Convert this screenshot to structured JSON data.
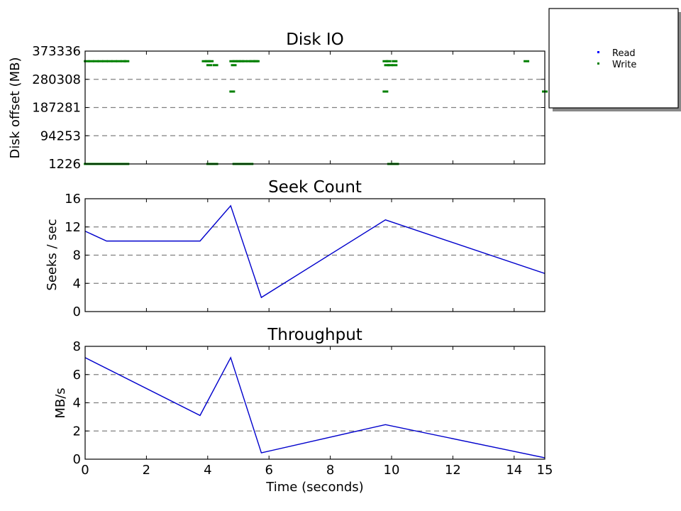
{
  "chart_data": [
    {
      "type": "scatter",
      "title": "Disk IO",
      "xlabel": "",
      "ylabel": "Disk offset (MB)",
      "xlim": [
        0,
        15
      ],
      "ylim": [
        1226,
        373336
      ],
      "yticks": [
        "1226",
        "94253",
        "187281",
        "280308",
        "373336"
      ],
      "grid": "horizontal-dashed",
      "series": [
        {
          "name": "Read",
          "color": "#0000ff",
          "points": []
        },
        {
          "name": "Write",
          "color": "#008000",
          "points": [
            [
              0.05,
              340000
            ],
            [
              0.2,
              340000
            ],
            [
              0.35,
              340000
            ],
            [
              0.5,
              340000
            ],
            [
              0.65,
              340000
            ],
            [
              0.8,
              340000
            ],
            [
              0.95,
              340000
            ],
            [
              1.1,
              340000
            ],
            [
              1.25,
              340000
            ],
            [
              1.35,
              340000
            ],
            [
              0.05,
              1226
            ],
            [
              0.2,
              1226
            ],
            [
              0.35,
              1226
            ],
            [
              0.5,
              1226
            ],
            [
              0.65,
              1226
            ],
            [
              0.8,
              1226
            ],
            [
              0.95,
              1226
            ],
            [
              1.1,
              1226
            ],
            [
              1.25,
              1226
            ],
            [
              1.35,
              1226
            ],
            [
              3.9,
              340000
            ],
            [
              4.0,
              340000
            ],
            [
              4.1,
              340000
            ],
            [
              4.05,
              327000
            ],
            [
              4.25,
              327000
            ],
            [
              4.05,
              1226
            ],
            [
              4.15,
              1226
            ],
            [
              4.25,
              1226
            ],
            [
              4.8,
              340000
            ],
            [
              4.9,
              340000
            ],
            [
              5.0,
              340000
            ],
            [
              5.1,
              340000
            ],
            [
              5.2,
              340000
            ],
            [
              5.35,
              340000
            ],
            [
              5.45,
              340000
            ],
            [
              5.55,
              340000
            ],
            [
              5.6,
              340000
            ],
            [
              4.85,
              327000
            ],
            [
              4.8,
              240000
            ],
            [
              4.9,
              1226
            ],
            [
              5.0,
              1226
            ],
            [
              5.15,
              1226
            ],
            [
              5.25,
              1226
            ],
            [
              5.4,
              1226
            ],
            [
              9.8,
              340000
            ],
            [
              9.9,
              340000
            ],
            [
              10.1,
              340000
            ],
            [
              9.85,
              327000
            ],
            [
              9.95,
              327000
            ],
            [
              10.1,
              327000
            ],
            [
              9.8,
              240000
            ],
            [
              9.95,
              1226
            ],
            [
              10.05,
              1226
            ],
            [
              10.15,
              1226
            ],
            [
              14.4,
              340000
            ],
            [
              15.0,
              240000
            ]
          ]
        }
      ]
    },
    {
      "type": "line",
      "title": "Seek Count",
      "xlabel": "",
      "ylabel": "Seeks / sec",
      "xlim": [
        0,
        15
      ],
      "ylim": [
        0,
        16
      ],
      "yticks": [
        "0",
        "4",
        "8",
        "12",
        "16"
      ],
      "grid": "horizontal-dashed",
      "series": [
        {
          "color": "#0000cc",
          "x": [
            0,
            0.7,
            3.75,
            4.75,
            5.75,
            9.8,
            15.0
          ],
          "y": [
            11.4,
            10.0,
            10.0,
            15.0,
            2.0,
            13.0,
            5.4
          ]
        }
      ]
    },
    {
      "type": "line",
      "title": "Throughput",
      "xlabel": "Time (seconds)",
      "ylabel": "MB/s",
      "xlim": [
        0,
        15
      ],
      "ylim": [
        0,
        8
      ],
      "yticks": [
        "0",
        "2",
        "4",
        "6",
        "8"
      ],
      "xticks": [
        "0",
        "2",
        "4",
        "6",
        "8",
        "10",
        "12",
        "14",
        "15"
      ],
      "grid": "horizontal-dashed",
      "series": [
        {
          "color": "#0000cc",
          "x": [
            0,
            3.75,
            4.75,
            5.75,
            9.8,
            15.0
          ],
          "y": [
            7.2,
            3.1,
            7.2,
            0.45,
            2.45,
            0.1
          ]
        }
      ]
    }
  ],
  "legend": {
    "placement": "top-right-outside",
    "items": [
      {
        "label": "Read",
        "color": "#0000ff"
      },
      {
        "label": "Write",
        "color": "#008000"
      }
    ]
  }
}
